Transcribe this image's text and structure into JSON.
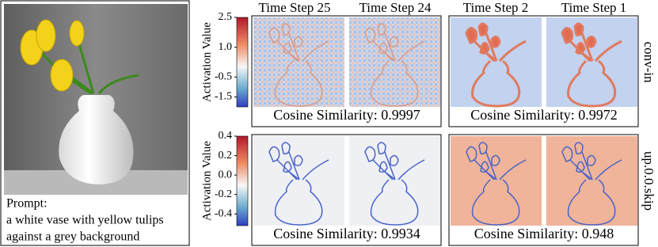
{
  "photo": {
    "prompt_label": "Prompt:",
    "prompt_lines": [
      "a white vase with yellow tulips",
      "against a grey background"
    ]
  },
  "column_headers": [
    "Time Step 25",
    "Time Step 24",
    "Time Step 2",
    "Time Step 1"
  ],
  "rows": [
    {
      "label": "conv-in",
      "colorbar": {
        "title": "Activation Value",
        "lim": [
          -2.0,
          2.5
        ],
        "ticks": [
          2.5,
          {
            "value": 1,
            "label": "1.0"
          },
          -0.5,
          -1.5
        ]
      },
      "similarities": [
        "Cosine Similarity: 0.9997",
        "Cosine Similarity: 0.9972"
      ]
    },
    {
      "label": "up.0.0.skip",
      "colorbar": {
        "title": "Activation Value",
        "lim": [
          -0.52,
          0.4
        ],
        "ticks": [
          0.4,
          0.2,
          {
            "value": 0,
            "label": "0.0"
          },
          -0.2,
          -0.4
        ]
      },
      "similarities": [
        "Cosine Similarity: 0.9934",
        "Cosine Similarity: 0.948"
      ]
    }
  ]
}
